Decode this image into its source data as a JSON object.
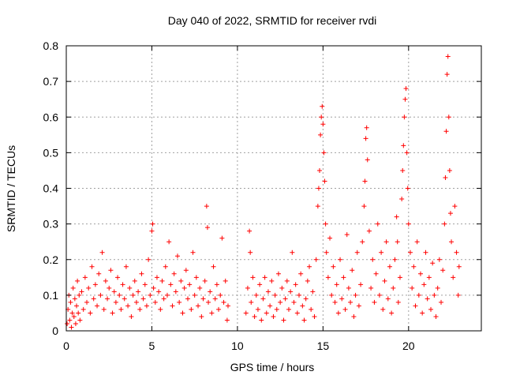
{
  "chart_data": {
    "type": "scatter",
    "title": "Day 040 of 2022, SRMTID for receiver rvdi",
    "xlabel": "GPS time / hours",
    "ylabel": "SRMTID / TECUs",
    "xlim": [
      0,
      24.25
    ],
    "ylim": [
      0,
      0.8
    ],
    "xticks": [
      0,
      5,
      10,
      15,
      20
    ],
    "xtick_labels": [
      "0",
      "5",
      "10",
      "15",
      "20"
    ],
    "yticks": [
      0,
      0.1,
      0.2,
      0.3,
      0.4,
      0.5,
      0.6,
      0.7,
      0.8
    ],
    "ytick_labels": [
      "0",
      "0.1",
      "0.2",
      "0.3",
      "0.4",
      "0.5",
      "0.6",
      "0.7",
      "0.8"
    ],
    "grid": true,
    "marker": "+",
    "color": "#ff0000",
    "series": [
      {
        "name": "SRMTID",
        "points": [
          [
            0.05,
            0.02
          ],
          [
            0.1,
            0.06
          ],
          [
            0.15,
            0.1
          ],
          [
            0.2,
            0.03
          ],
          [
            0.25,
            0.08
          ],
          [
            0.3,
            0.01
          ],
          [
            0.35,
            0.05
          ],
          [
            0.4,
            0.12
          ],
          [
            0.45,
            0.04
          ],
          [
            0.5,
            0.09
          ],
          [
            0.55,
            0.02
          ],
          [
            0.6,
            0.07
          ],
          [
            0.65,
            0.14
          ],
          [
            0.7,
            0.05
          ],
          [
            0.75,
            0.1
          ],
          [
            0.8,
            0.03
          ],
          [
            0.9,
            0.11
          ],
          [
            1.0,
            0.06
          ],
          [
            1.1,
            0.15
          ],
          [
            1.2,
            0.08
          ],
          [
            1.3,
            0.12
          ],
          [
            1.4,
            0.05
          ],
          [
            1.5,
            0.18
          ],
          [
            1.6,
            0.09
          ],
          [
            1.7,
            0.13
          ],
          [
            1.8,
            0.07
          ],
          [
            1.9,
            0.16
          ],
          [
            2.0,
            0.1
          ],
          [
            2.1,
            0.22
          ],
          [
            2.2,
            0.06
          ],
          [
            2.3,
            0.14
          ],
          [
            2.4,
            0.09
          ],
          [
            2.5,
            0.12
          ],
          [
            2.6,
            0.17
          ],
          [
            2.7,
            0.05
          ],
          [
            2.8,
            0.11
          ],
          [
            2.9,
            0.08
          ],
          [
            3.0,
            0.15
          ],
          [
            3.1,
            0.1
          ],
          [
            3.2,
            0.06
          ],
          [
            3.3,
            0.13
          ],
          [
            3.4,
            0.09
          ],
          [
            3.5,
            0.18
          ],
          [
            3.6,
            0.07
          ],
          [
            3.7,
            0.12
          ],
          [
            3.8,
            0.04
          ],
          [
            3.9,
            0.1
          ],
          [
            4.0,
            0.14
          ],
          [
            4.1,
            0.08
          ],
          [
            4.2,
            0.11
          ],
          [
            4.3,
            0.06
          ],
          [
            4.4,
            0.16
          ],
          [
            4.5,
            0.09
          ],
          [
            4.6,
            0.13
          ],
          [
            4.7,
            0.07
          ],
          [
            4.8,
            0.2
          ],
          [
            4.9,
            0.1
          ],
          [
            5.0,
            0.28
          ],
          [
            5.05,
            0.3
          ],
          [
            5.1,
            0.12
          ],
          [
            5.2,
            0.08
          ],
          [
            5.3,
            0.15
          ],
          [
            5.4,
            0.11
          ],
          [
            5.5,
            0.06
          ],
          [
            5.6,
            0.14
          ],
          [
            5.7,
            0.09
          ],
          [
            5.8,
            0.18
          ],
          [
            5.9,
            0.1
          ],
          [
            6.0,
            0.25
          ],
          [
            6.1,
            0.13
          ],
          [
            6.2,
            0.07
          ],
          [
            6.3,
            0.16
          ],
          [
            6.4,
            0.11
          ],
          [
            6.5,
            0.21
          ],
          [
            6.6,
            0.08
          ],
          [
            6.7,
            0.14
          ],
          [
            6.8,
            0.05
          ],
          [
            6.9,
            0.12
          ],
          [
            7.0,
            0.17
          ],
          [
            7.1,
            0.09
          ],
          [
            7.2,
            0.13
          ],
          [
            7.3,
            0.06
          ],
          [
            7.4,
            0.22
          ],
          [
            7.5,
            0.1
          ],
          [
            7.6,
            0.15
          ],
          [
            7.7,
            0.07
          ],
          [
            7.8,
            0.12
          ],
          [
            7.9,
            0.04
          ],
          [
            8.0,
            0.09
          ],
          [
            8.1,
            0.14
          ],
          [
            8.2,
            0.35
          ],
          [
            8.25,
            0.29
          ],
          [
            8.3,
            0.08
          ],
          [
            8.4,
            0.11
          ],
          [
            8.5,
            0.05
          ],
          [
            8.6,
            0.18
          ],
          [
            8.7,
            0.09
          ],
          [
            8.8,
            0.13
          ],
          [
            8.9,
            0.06
          ],
          [
            9.0,
            0.1
          ],
          [
            9.1,
            0.26
          ],
          [
            9.2,
            0.08
          ],
          [
            9.3,
            0.14
          ],
          [
            9.4,
            0.03
          ],
          [
            9.45,
            0.07
          ],
          [
            10.5,
            0.05
          ],
          [
            10.6,
            0.12
          ],
          [
            10.7,
            0.28
          ],
          [
            10.75,
            0.22
          ],
          [
            10.8,
            0.08
          ],
          [
            10.9,
            0.15
          ],
          [
            11.0,
            0.04
          ],
          [
            11.1,
            0.1
          ],
          [
            11.2,
            0.06
          ],
          [
            11.3,
            0.13
          ],
          [
            11.4,
            0.03
          ],
          [
            11.5,
            0.09
          ],
          [
            11.6,
            0.15
          ],
          [
            11.7,
            0.05
          ],
          [
            11.8,
            0.11
          ],
          [
            11.9,
            0.07
          ],
          [
            12.0,
            0.14
          ],
          [
            12.1,
            0.04
          ],
          [
            12.2,
            0.1
          ],
          [
            12.3,
            0.06
          ],
          [
            12.4,
            0.16
          ],
          [
            12.5,
            0.08
          ],
          [
            12.6,
            0.12
          ],
          [
            12.7,
            0.03
          ],
          [
            12.8,
            0.09
          ],
          [
            12.9,
            0.14
          ],
          [
            13.0,
            0.06
          ],
          [
            13.1,
            0.11
          ],
          [
            13.2,
            0.22
          ],
          [
            13.3,
            0.08
          ],
          [
            13.4,
            0.13
          ],
          [
            13.5,
            0.05
          ],
          [
            13.6,
            0.1
          ],
          [
            13.7,
            0.16
          ],
          [
            13.8,
            0.07
          ],
          [
            13.9,
            0.03
          ],
          [
            14.0,
            0.09
          ],
          [
            14.1,
            0.14
          ],
          [
            14.2,
            0.18
          ],
          [
            14.3,
            0.06
          ],
          [
            14.4,
            0.11
          ],
          [
            14.5,
            0.04
          ],
          [
            14.6,
            0.2
          ],
          [
            14.7,
            0.35
          ],
          [
            14.75,
            0.4
          ],
          [
            14.8,
            0.45
          ],
          [
            14.85,
            0.55
          ],
          [
            14.9,
            0.6
          ],
          [
            14.95,
            0.63
          ],
          [
            15.0,
            0.58
          ],
          [
            15.05,
            0.5
          ],
          [
            15.1,
            0.42
          ],
          [
            15.15,
            0.3
          ],
          [
            15.2,
            0.22
          ],
          [
            15.3,
            0.15
          ],
          [
            15.4,
            0.26
          ],
          [
            15.5,
            0.1
          ],
          [
            15.6,
            0.18
          ],
          [
            15.7,
            0.08
          ],
          [
            15.8,
            0.13
          ],
          [
            15.9,
            0.05
          ],
          [
            16.0,
            0.2
          ],
          [
            16.1,
            0.09
          ],
          [
            16.2,
            0.15
          ],
          [
            16.3,
            0.06
          ],
          [
            16.4,
            0.27
          ],
          [
            16.5,
            0.12
          ],
          [
            16.6,
            0.08
          ],
          [
            16.7,
            0.17
          ],
          [
            16.8,
            0.04
          ],
          [
            16.9,
            0.1
          ],
          [
            17.0,
            0.22
          ],
          [
            17.1,
            0.07
          ],
          [
            17.2,
            0.13
          ],
          [
            17.3,
            0.25
          ],
          [
            17.4,
            0.35
          ],
          [
            17.45,
            0.42
          ],
          [
            17.5,
            0.54
          ],
          [
            17.55,
            0.57
          ],
          [
            17.6,
            0.48
          ],
          [
            17.7,
            0.28
          ],
          [
            17.8,
            0.12
          ],
          [
            17.9,
            0.2
          ],
          [
            18.0,
            0.08
          ],
          [
            18.1,
            0.16
          ],
          [
            18.2,
            0.3
          ],
          [
            18.3,
            0.1
          ],
          [
            18.4,
            0.22
          ],
          [
            18.5,
            0.06
          ],
          [
            18.6,
            0.14
          ],
          [
            18.7,
            0.25
          ],
          [
            18.8,
            0.09
          ],
          [
            18.9,
            0.18
          ],
          [
            19.0,
            0.05
          ],
          [
            19.1,
            0.12
          ],
          [
            19.2,
            0.2
          ],
          [
            19.3,
            0.32
          ],
          [
            19.35,
            0.25
          ],
          [
            19.4,
            0.08
          ],
          [
            19.5,
            0.15
          ],
          [
            19.6,
            0.37
          ],
          [
            19.65,
            0.45
          ],
          [
            19.7,
            0.52
          ],
          [
            19.75,
            0.6
          ],
          [
            19.8,
            0.65
          ],
          [
            19.85,
            0.68
          ],
          [
            19.9,
            0.5
          ],
          [
            19.95,
            0.4
          ],
          [
            20.0,
            0.3
          ],
          [
            20.1,
            0.22
          ],
          [
            20.2,
            0.12
          ],
          [
            20.3,
            0.18
          ],
          [
            20.4,
            0.07
          ],
          [
            20.5,
            0.25
          ],
          [
            20.6,
            0.1
          ],
          [
            20.7,
            0.16
          ],
          [
            20.8,
            0.05
          ],
          [
            20.9,
            0.13
          ],
          [
            21.0,
            0.22
          ],
          [
            21.1,
            0.09
          ],
          [
            21.2,
            0.15
          ],
          [
            21.3,
            0.06
          ],
          [
            21.4,
            0.19
          ],
          [
            21.5,
            0.1
          ],
          [
            21.6,
            0.04
          ],
          [
            21.7,
            0.12
          ],
          [
            21.8,
            0.2
          ],
          [
            21.9,
            0.08
          ],
          [
            22.0,
            0.17
          ],
          [
            22.1,
            0.3
          ],
          [
            22.15,
            0.43
          ],
          [
            22.2,
            0.56
          ],
          [
            22.25,
            0.72
          ],
          [
            22.3,
            0.77
          ],
          [
            22.35,
            0.6
          ],
          [
            22.4,
            0.45
          ],
          [
            22.45,
            0.33
          ],
          [
            22.5,
            0.25
          ],
          [
            22.6,
            0.15
          ],
          [
            22.7,
            0.35
          ],
          [
            22.8,
            0.22
          ],
          [
            22.9,
            0.1
          ],
          [
            22.95,
            0.18
          ]
        ]
      }
    ]
  }
}
